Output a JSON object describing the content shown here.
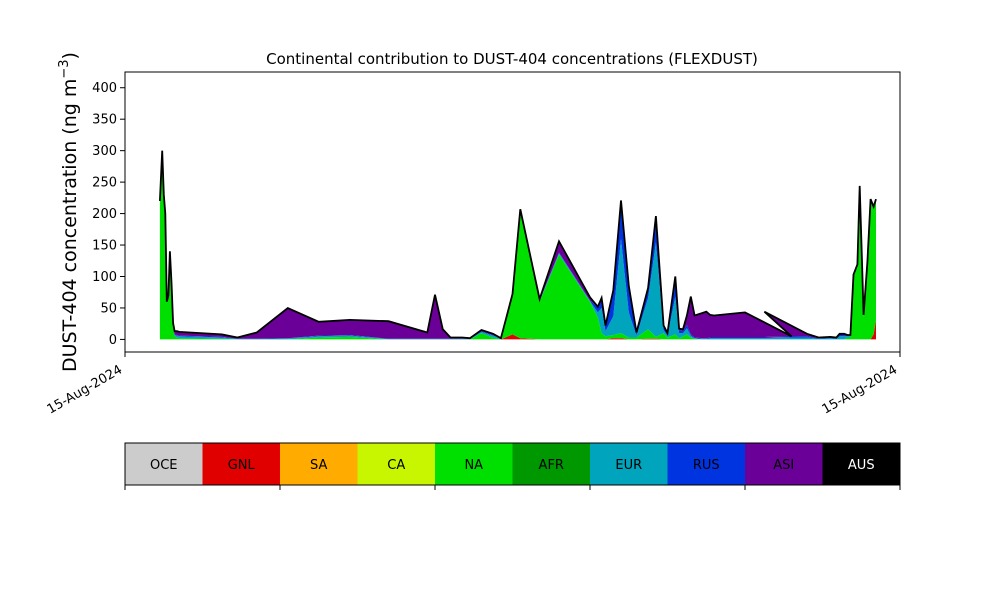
{
  "chart_data": [
    {
      "type": "area",
      "title": "Continental contribution to DUST-404 concentrations (FLEXDUST)",
      "ylabel_main": "DUST-404 concentration (ng m",
      "ylabel_sup": "−3",
      "ylabel_close": ")",
      "xlabel": "",
      "ylim": [
        -20,
        425
      ],
      "yticks": [
        0,
        50,
        100,
        150,
        200,
        250,
        300,
        350,
        400
      ],
      "xlim": [
        0,
        100
      ],
      "xtick_labels": [
        "15-Aug-2024",
        "15-Aug-2024"
      ],
      "grid": false,
      "x": [
        4.5,
        4.8,
        5.0,
        5.2,
        5.4,
        5.6,
        5.8,
        6.0,
        6.2,
        6.4,
        6.7,
        7.0,
        12.5,
        14.5,
        17.0,
        21.0,
        25.0,
        29.0,
        34.0,
        39.0,
        40.0,
        41.0,
        42.0,
        43.5,
        44.5,
        46.0,
        47.5,
        48.5,
        50.0,
        51.0,
        53.5,
        56.0,
        60.0,
        61.0,
        61.5,
        62.0,
        63.0,
        64.0,
        65.0,
        66.0,
        67.5,
        68.5,
        69.5,
        70.0,
        71.0,
        71.5,
        72.0,
        72.5,
        73.0,
        73.5,
        74.5,
        75.0,
        75.5,
        76.0,
        80.0,
        86.0,
        82.5,
        88.0,
        89.5,
        91.0,
        91.8,
        92.2,
        92.8,
        93.2,
        93.6,
        94.0,
        94.5,
        94.8,
        95.3,
        95.8,
        96.2,
        96.6,
        96.9
      ],
      "series": [
        {
          "name": "GNL",
          "color": "#e00000",
          "values": [
            0,
            0,
            0,
            0,
            0,
            0,
            0,
            0,
            0,
            0,
            0,
            0,
            0,
            0,
            0,
            0,
            0,
            0,
            0,
            0,
            0,
            0,
            0,
            0,
            0,
            0,
            0,
            0,
            8,
            2,
            0,
            0,
            0,
            0,
            0,
            0,
            2,
            2,
            0,
            0,
            1,
            1,
            0,
            0,
            0,
            0,
            0,
            0,
            0,
            0,
            0,
            0,
            0,
            0,
            0,
            0,
            0,
            0,
            0,
            0,
            0,
            0,
            0,
            0,
            0,
            0,
            0,
            0,
            0,
            0,
            0,
            8,
            30
          ]
        },
        {
          "name": "NA",
          "color": "#00e000",
          "values": [
            220,
            300,
            230,
            200,
            60,
            70,
            140,
            90,
            20,
            5,
            3,
            2,
            1,
            0,
            0,
            0,
            3,
            4,
            0,
            0,
            0,
            0,
            0,
            0,
            0,
            10,
            3,
            0,
            60,
            200,
            60,
            135,
            60,
            35,
            10,
            5,
            5,
            8,
            3,
            3,
            15,
            3,
            10,
            3,
            8,
            2,
            5,
            8,
            3,
            1,
            0,
            0,
            0,
            0,
            0,
            0,
            0,
            0,
            0,
            0,
            0,
            0,
            0,
            3,
            3,
            100,
            115,
            240,
            35,
            120,
            220,
            200,
            190
          ]
        },
        {
          "name": "EUR",
          "color": "#00a4bc",
          "values": [
            0,
            0,
            0,
            0,
            0,
            0,
            0,
            0,
            1,
            2,
            3,
            3,
            2,
            1,
            1,
            2,
            2,
            2,
            1,
            1,
            1,
            1,
            1,
            1,
            1,
            2,
            3,
            2,
            2,
            2,
            1,
            2,
            1,
            8,
            40,
            8,
            30,
            150,
            40,
            3,
            50,
            150,
            5,
            3,
            60,
            8,
            5,
            10,
            3,
            1,
            1,
            1,
            2,
            2,
            2,
            2,
            3,
            3,
            1,
            2,
            1,
            5,
            5,
            2,
            2,
            1,
            2,
            2,
            2,
            1,
            1,
            1,
            1
          ]
        },
        {
          "name": "RUS",
          "color": "#0034e0",
          "values": [
            0,
            0,
            0,
            0,
            0,
            0,
            0,
            0,
            1,
            1,
            1,
            1,
            1,
            0,
            0,
            0,
            1,
            1,
            0,
            0,
            0,
            0,
            0,
            0,
            0,
            1,
            1,
            0,
            1,
            1,
            1,
            1,
            1,
            8,
            15,
            8,
            40,
            60,
            40,
            3,
            15,
            40,
            5,
            3,
            30,
            5,
            3,
            5,
            2,
            1,
            1,
            1,
            1,
            1,
            1,
            1,
            1,
            2,
            1,
            1,
            1,
            2,
            2,
            1,
            1,
            1,
            1,
            1,
            1,
            1,
            1,
            1,
            1
          ]
        },
        {
          "name": "ASI",
          "color": "#6a0098",
          "values": [
            0,
            0,
            0,
            0,
            0,
            0,
            0,
            0,
            4,
            5,
            6,
            6,
            4,
            2,
            10,
            48,
            22,
            24,
            28,
            10,
            70,
            15,
            2,
            2,
            1,
            2,
            2,
            0,
            1,
            2,
            2,
            18,
            5,
            1,
            1,
            1,
            1,
            1,
            2,
            2,
            1,
            2,
            2,
            1,
            2,
            2,
            3,
            15,
            60,
            35,
            40,
            42,
            36,
            35,
            40,
            2,
            40,
            4,
            1,
            1,
            1,
            2,
            2,
            1,
            1,
            1,
            1,
            1,
            1,
            1,
            1,
            1,
            1
          ]
        }
      ]
    },
    {
      "type": "legend-colorbar",
      "categories": [
        "OCE",
        "GNL",
        "SA",
        "CA",
        "NA",
        "AFR",
        "EUR",
        "RUS",
        "ASI",
        "AUS"
      ],
      "colors": [
        "#cccccc",
        "#e00000",
        "#ffab00",
        "#c8f500",
        "#00e000",
        "#009800",
        "#00a4bc",
        "#0034e0",
        "#6a0098",
        "#000000"
      ],
      "text_colors": [
        "#000000",
        "#000000",
        "#000000",
        "#000000",
        "#000000",
        "#000000",
        "#000000",
        "#000000",
        "#000000",
        "#ffffff"
      ]
    }
  ]
}
